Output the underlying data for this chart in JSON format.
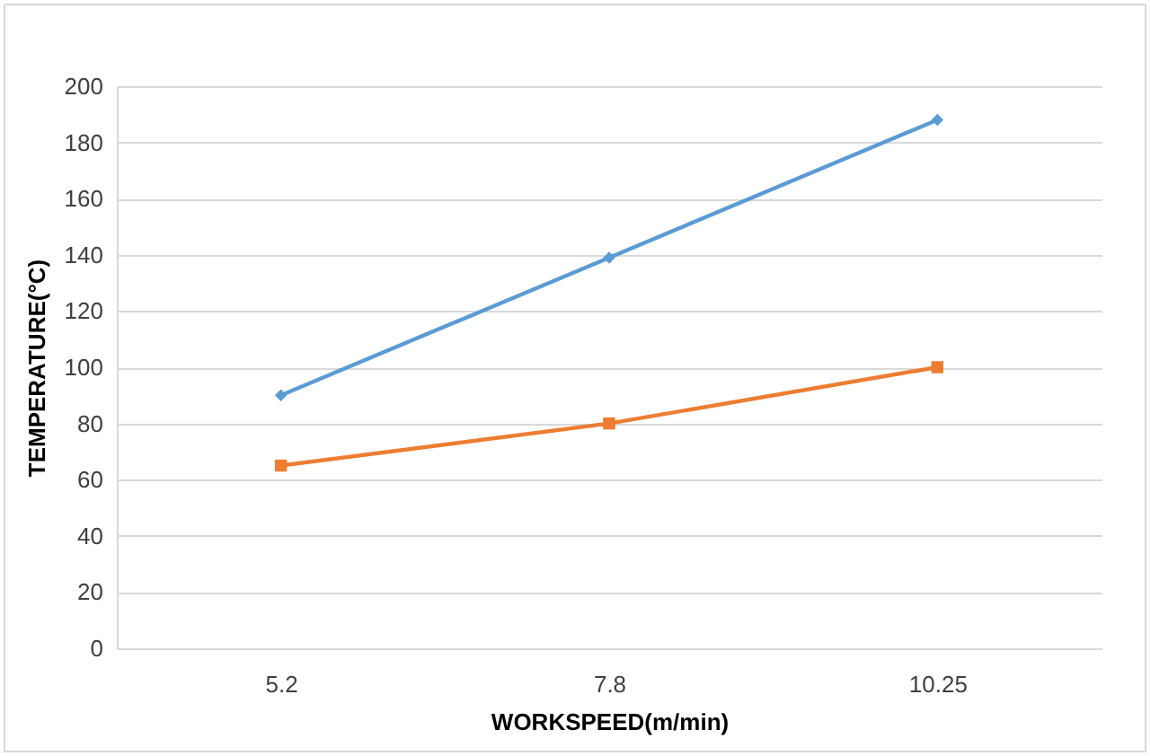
{
  "chart_data": {
    "type": "line",
    "xlabel": "WORKSPEED(m/min)",
    "ylabel": "TEMPERATURE(°C)",
    "categories": [
      "5.2",
      "7.8",
      "10.25"
    ],
    "series": [
      {
        "color": "#5b9bd5",
        "values": [
          90,
          139,
          188
        ],
        "marker": "diamond"
      },
      {
        "color": "#ed7d31",
        "values": [
          65,
          80,
          100
        ],
        "marker": "square"
      }
    ],
    "ylim": [
      0,
      200
    ],
    "yticks": [
      0,
      20,
      40,
      60,
      80,
      100,
      120,
      140,
      160,
      180,
      200
    ],
    "grid": "y"
  }
}
